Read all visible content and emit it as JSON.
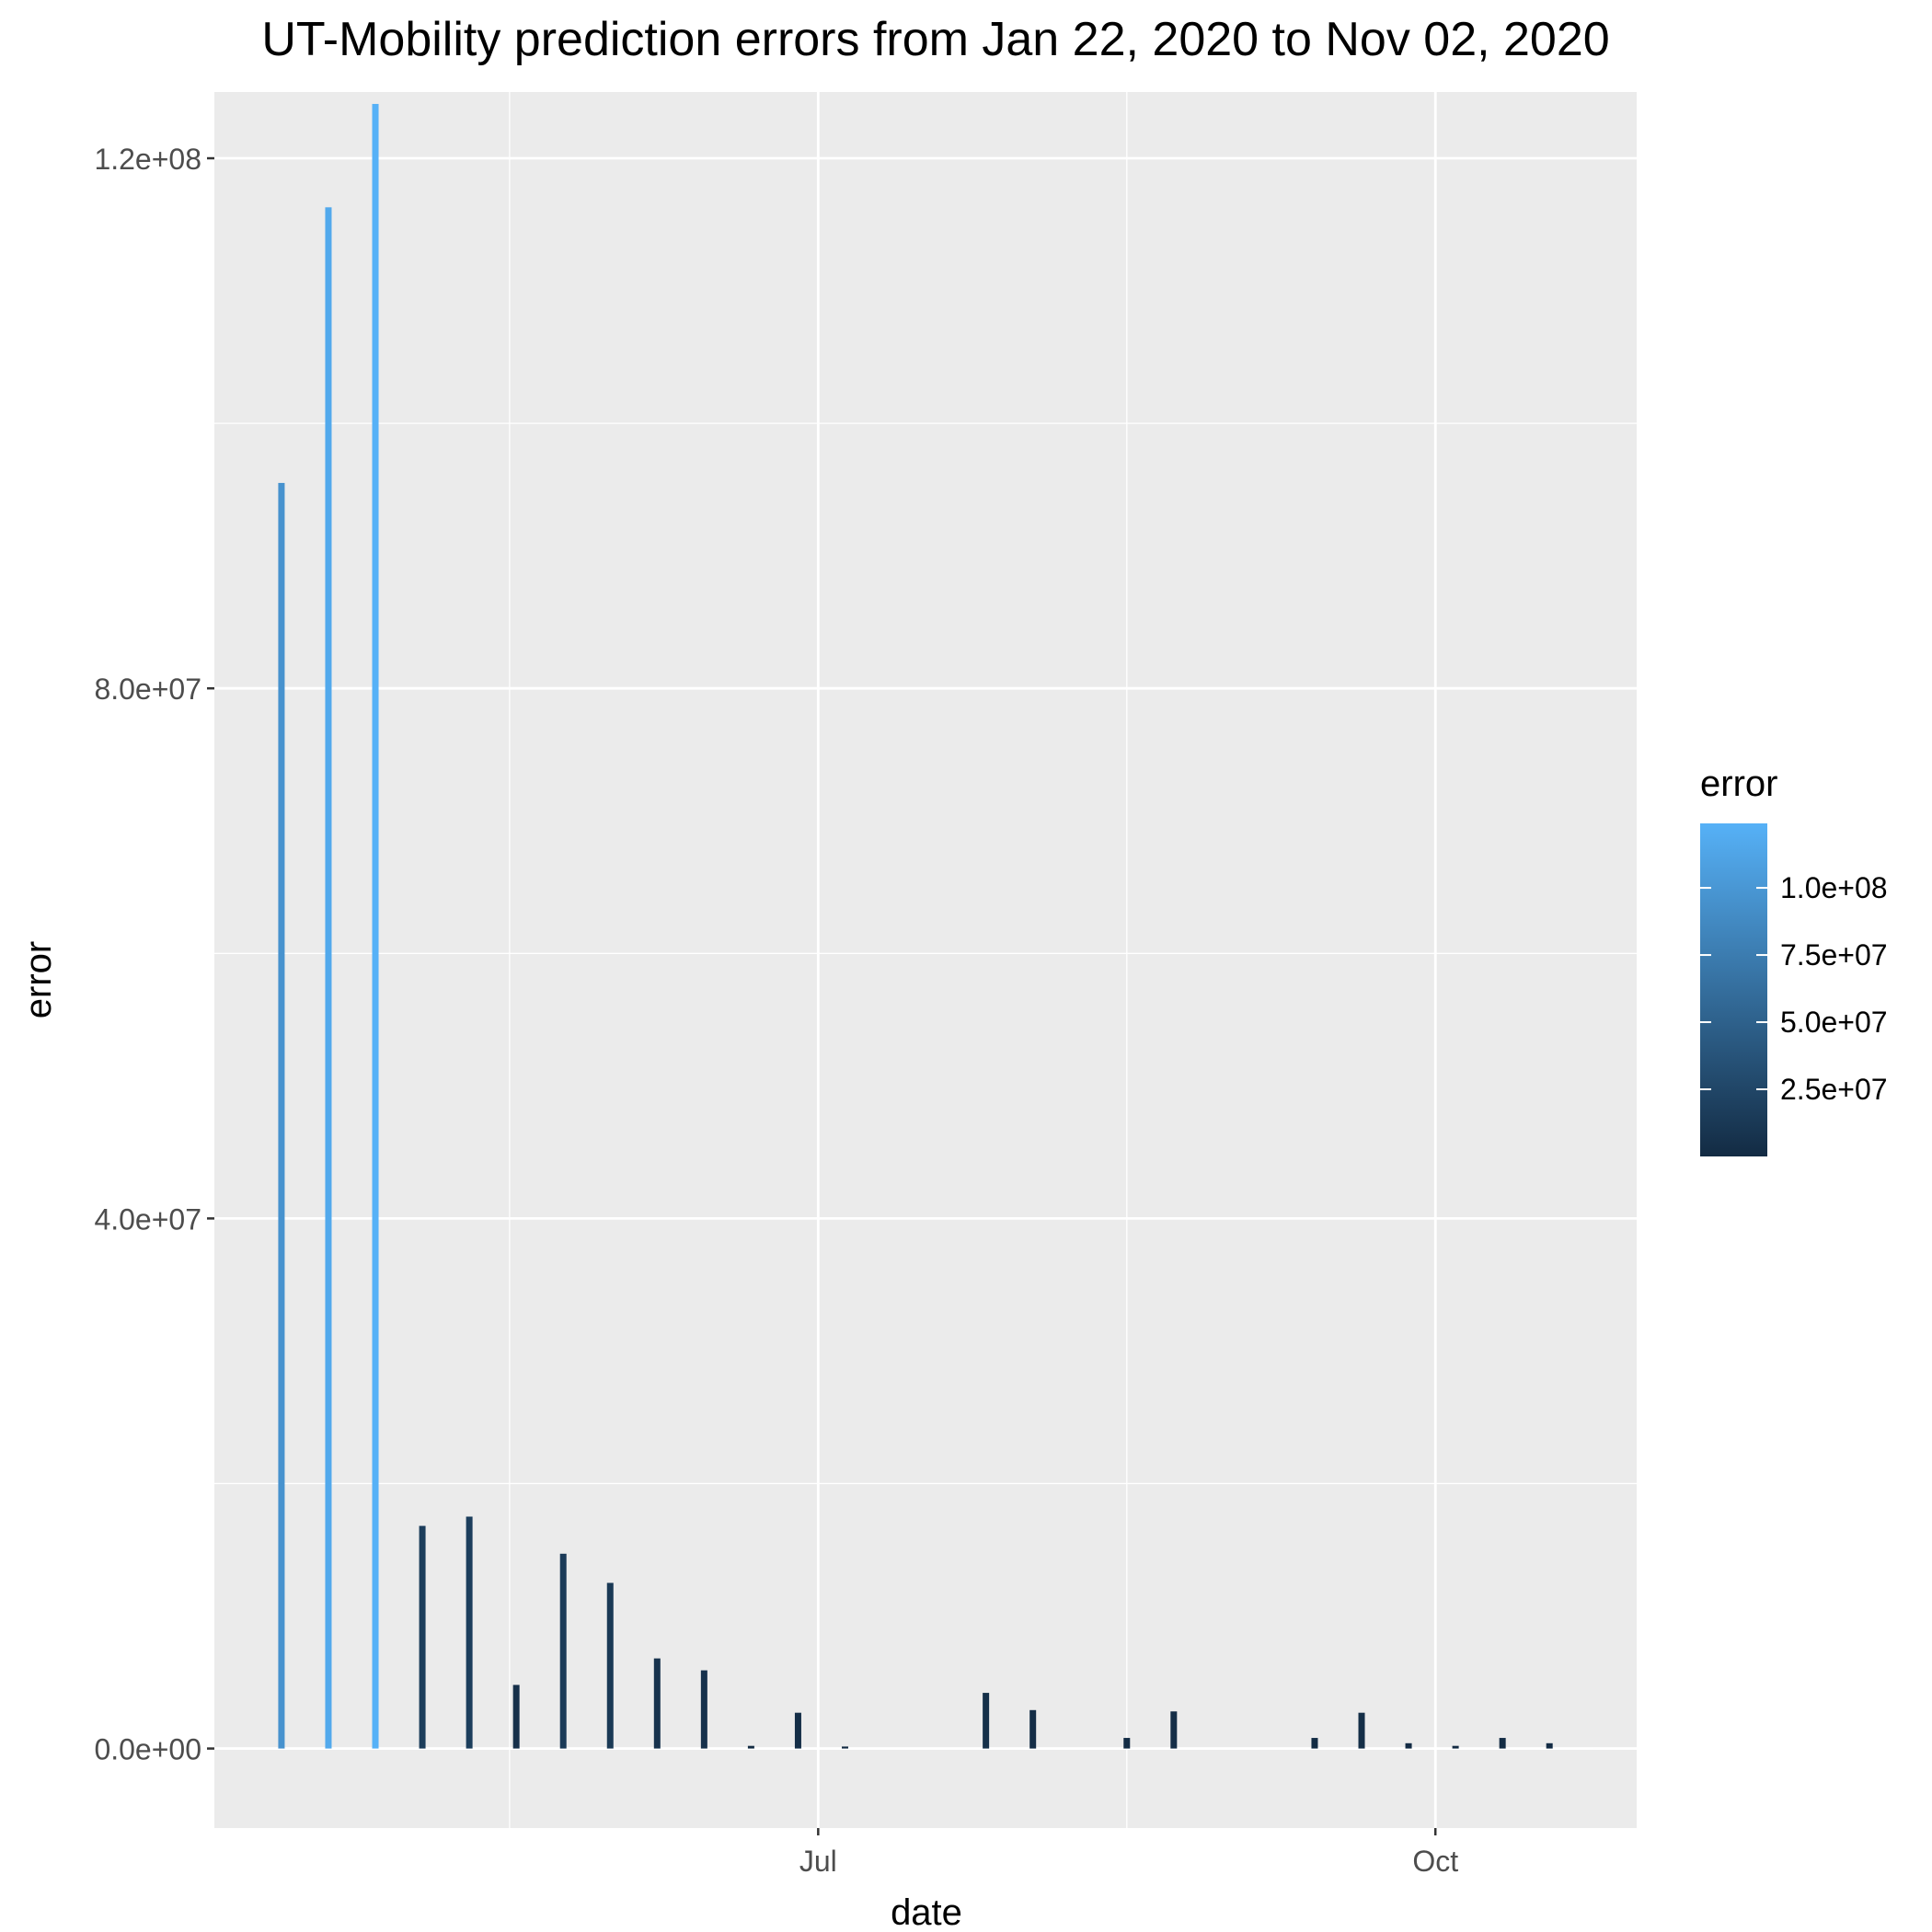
{
  "chart_data": {
    "type": "bar",
    "title": "UT-Mobility prediction errors from Jan 22, 2020 to Nov 02, 2020",
    "xlabel": "date",
    "ylabel": "error",
    "x_range": [
      "2020-04-02",
      "2020-10-31"
    ],
    "x_ticks": [
      {
        "date": "2020-07-01",
        "label": "Jul"
      },
      {
        "date": "2020-10-01",
        "label": "Oct"
      }
    ],
    "ylim": [
      -6000000,
      125000000
    ],
    "y_ticks": [
      0,
      40000000,
      80000000,
      120000000
    ],
    "y_tick_labels": [
      "0.0e+00",
      "4.0e+07",
      "8.0e+07",
      "1.2e+08"
    ],
    "grid": true,
    "legend": {
      "title": "error",
      "placement": "right",
      "color_low": "#132B43",
      "color_high": "#56B1F7",
      "range": [
        0,
        124000000
      ],
      "ticks": [
        25000000,
        50000000,
        75000000,
        100000000
      ],
      "tick_labels": [
        "2.5e+07",
        "5.0e+07",
        "7.5e+07",
        "1.0e+08"
      ]
    },
    "series": [
      {
        "x": [
          "2020-04-12",
          "2020-04-19",
          "2020-04-26",
          "2020-05-03",
          "2020-05-10",
          "2020-05-17",
          "2020-05-24",
          "2020-05-31",
          "2020-06-07",
          "2020-06-14",
          "2020-06-21",
          "2020-06-28",
          "2020-07-05",
          "2020-07-26",
          "2020-08-02",
          "2020-08-16",
          "2020-08-23",
          "2020-09-13",
          "2020-09-20",
          "2020-09-27",
          "2020-10-04",
          "2020-10-11",
          "2020-10-18",
          "2020-10-25"
        ],
        "values": [
          95500000,
          116300000,
          124100000,
          16800000,
          17500000,
          4800000,
          14700000,
          12500000,
          6800000,
          5900000,
          200000,
          2700000,
          150000,
          4200000,
          2900000,
          800000,
          2800000,
          800000,
          2700000,
          400000,
          200000,
          800000,
          400000,
          0
        ]
      }
    ]
  }
}
